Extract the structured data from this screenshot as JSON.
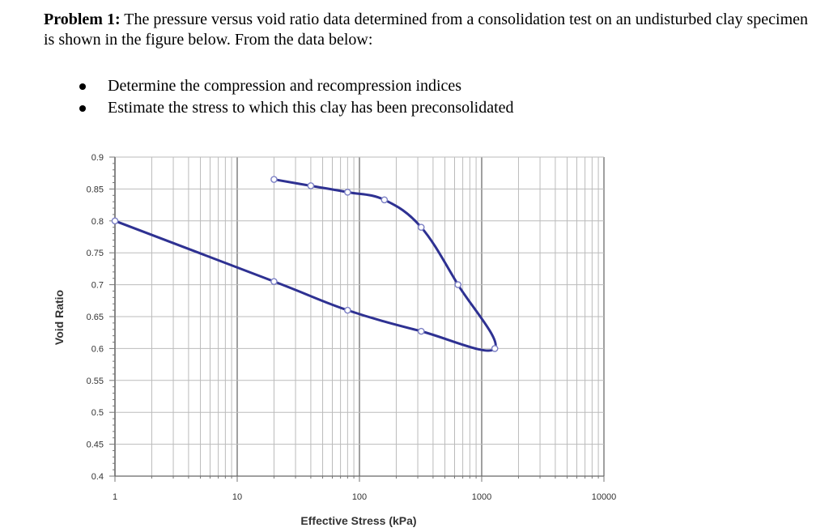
{
  "problem": {
    "label": "Problem 1:",
    "text": "The pressure versus void ratio data determined from a consolidation test on an undisturbed clay specimen is shown in the figure below. From the data below:",
    "bullets": [
      "Determine the compression and recompression indices",
      "Estimate the stress to which this clay has been preconsolidated"
    ]
  },
  "chart_data": {
    "type": "line",
    "xscale": "log",
    "xlim": [
      1,
      10000
    ],
    "ylim": [
      0.4,
      0.9
    ],
    "xlabel": "Effective Stress (kPa)",
    "ylabel": "Void Ratio",
    "x_ticks": [
      "1",
      "10",
      "100",
      "1000",
      "10000"
    ],
    "y_ticks": [
      "0.9",
      "0.85",
      "0.8",
      "0.75",
      "0.7",
      "0.65",
      "0.6",
      "0.55",
      "0.5",
      "0.45",
      "0.4"
    ],
    "grid": true,
    "series": [
      {
        "color": "#2e3192",
        "x": [
          20,
          40,
          80,
          160,
          320,
          640,
          1280,
          320,
          80,
          20,
          1
        ],
        "y": [
          0.865,
          0.855,
          0.845,
          0.833,
          0.79,
          0.7,
          0.6,
          0.627,
          0.66,
          0.705,
          0.8
        ]
      }
    ]
  }
}
